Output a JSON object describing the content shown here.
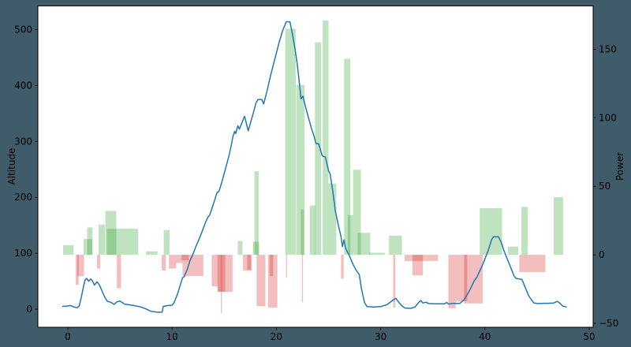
{
  "figure": {
    "background_color": "#405b69",
    "plot_background_color": "#ffffff",
    "spine_color": "#000000",
    "tick_color": "#000000",
    "tick_label_color": "#000000",
    "tick_font_size": 12
  },
  "chart_data": {
    "type": "line+bar",
    "title": "",
    "x_axis": {
      "range": [
        -2.874,
        50.38
      ],
      "ticks": [
        0,
        10,
        20,
        30,
        40,
        50
      ],
      "tick_labels": [
        "0",
        "10",
        "20",
        "30",
        "40",
        "50"
      ]
    },
    "left_y_axis": {
      "label": "Altitude",
      "range": [
        -32.4,
        542.3
      ],
      "ticks": [
        0,
        100,
        200,
        300,
        400,
        500
      ],
      "tick_labels": [
        "0",
        "100",
        "200",
        "300",
        "400",
        "500"
      ]
    },
    "right_y_axis": {
      "label": "Power",
      "range": [
        -52.9,
        181.6
      ],
      "ticks": [
        -50,
        0,
        50,
        100,
        150
      ],
      "tick_labels": [
        "−50",
        "0",
        "50",
        "100",
        "150"
      ]
    },
    "altitude_line": {
      "name": "Altitude",
      "color": "#1f77b4",
      "stroke_width": 1.5,
      "points": [
        [
          -0.5,
          5
        ],
        [
          -0.1,
          5.5
        ],
        [
          0.25,
          6.5
        ],
        [
          0.6,
          4
        ],
        [
          0.9,
          2.5
        ],
        [
          1.1,
          6
        ],
        [
          1.3,
          22
        ],
        [
          1.5,
          40
        ],
        [
          1.65,
          52
        ],
        [
          1.8,
          55
        ],
        [
          2.0,
          50
        ],
        [
          2.2,
          54
        ],
        [
          2.35,
          51
        ],
        [
          2.55,
          43
        ],
        [
          2.8,
          49
        ],
        [
          3.0,
          44
        ],
        [
          3.2,
          36
        ],
        [
          3.55,
          21
        ],
        [
          3.8,
          14
        ],
        [
          4.1,
          12.5
        ],
        [
          4.45,
          8.5
        ],
        [
          4.7,
          13
        ],
        [
          5.0,
          14.5
        ],
        [
          5.45,
          9
        ],
        [
          6.2,
          7
        ],
        [
          7.0,
          4
        ],
        [
          7.5,
          0.5
        ],
        [
          8.0,
          -4
        ],
        [
          8.6,
          -5.5
        ],
        [
          9.05,
          -5.5
        ],
        [
          9.15,
          5
        ],
        [
          9.6,
          6.5
        ],
        [
          10.0,
          7
        ],
        [
          10.2,
          12
        ],
        [
          10.5,
          26
        ],
        [
          10.8,
          44
        ],
        [
          11.0,
          56
        ],
        [
          11.15,
          58
        ],
        [
          11.45,
          71
        ],
        [
          11.7,
          86
        ],
        [
          12.0,
          98
        ],
        [
          12.3,
          113
        ],
        [
          12.6,
          126
        ],
        [
          12.9,
          140
        ],
        [
          13.2,
          155
        ],
        [
          13.45,
          165
        ],
        [
          13.6,
          168
        ],
        [
          13.85,
          182
        ],
        [
          14.1,
          196
        ],
        [
          14.3,
          208
        ],
        [
          14.5,
          211
        ],
        [
          14.75,
          226
        ],
        [
          15.0,
          243
        ],
        [
          15.25,
          260
        ],
        [
          15.5,
          278
        ],
        [
          15.7,
          295
        ],
        [
          15.85,
          310
        ],
        [
          16.0,
          318
        ],
        [
          16.1,
          314
        ],
        [
          16.3,
          328
        ],
        [
          16.45,
          322
        ],
        [
          16.95,
          345
        ],
        [
          17.3,
          319
        ],
        [
          17.7,
          345
        ],
        [
          18.05,
          369
        ],
        [
          18.25,
          375
        ],
        [
          18.6,
          375
        ],
        [
          18.78,
          367
        ],
        [
          19.1,
          390
        ],
        [
          19.45,
          418
        ],
        [
          19.85,
          447
        ],
        [
          20.25,
          476
        ],
        [
          20.6,
          498
        ],
        [
          20.95,
          514
        ],
        [
          21.3,
          514
        ],
        [
          21.5,
          496
        ],
        [
          21.75,
          470
        ],
        [
          22.0,
          439
        ],
        [
          22.15,
          414
        ],
        [
          22.37,
          376
        ],
        [
          22.55,
          381
        ],
        [
          22.7,
          369
        ],
        [
          23.0,
          348
        ],
        [
          23.35,
          324
        ],
        [
          23.6,
          310
        ],
        [
          23.8,
          296
        ],
        [
          24.05,
          296
        ],
        [
          24.4,
          274
        ],
        [
          24.7,
          272
        ],
        [
          25.0,
          248
        ],
        [
          25.15,
          242
        ],
        [
          25.4,
          212
        ],
        [
          25.65,
          176
        ],
        [
          25.95,
          150
        ],
        [
          26.2,
          130
        ],
        [
          26.33,
          112
        ],
        [
          26.48,
          124
        ],
        [
          26.65,
          108
        ],
        [
          27.0,
          96
        ],
        [
          27.35,
          80
        ],
        [
          27.7,
          68
        ],
        [
          27.95,
          62
        ],
        [
          28.15,
          38
        ],
        [
          28.45,
          12
        ],
        [
          28.7,
          4.5
        ],
        [
          29.3,
          4
        ],
        [
          30.0,
          4.5
        ],
        [
          30.6,
          8
        ],
        [
          31.1,
          15
        ],
        [
          31.45,
          19.5
        ],
        [
          31.75,
          12
        ],
        [
          32.1,
          5
        ],
        [
          32.35,
          2
        ],
        [
          32.9,
          1.5
        ],
        [
          33.3,
          4
        ],
        [
          33.65,
          12
        ],
        [
          33.85,
          15.5
        ],
        [
          34.05,
          11
        ],
        [
          34.35,
          12.5
        ],
        [
          34.6,
          10
        ],
        [
          35.3,
          9.5
        ],
        [
          36.1,
          9.5
        ],
        [
          36.35,
          12
        ],
        [
          36.5,
          9
        ],
        [
          36.9,
          10.3
        ],
        [
          37.6,
          10.3
        ],
        [
          38.0,
          17
        ],
        [
          38.3,
          26
        ],
        [
          38.55,
          34
        ],
        [
          38.95,
          50
        ],
        [
          39.25,
          58
        ],
        [
          39.5,
          68.5
        ],
        [
          39.8,
          80
        ],
        [
          40.05,
          92
        ],
        [
          40.3,
          104
        ],
        [
          40.5,
          116
        ],
        [
          40.65,
          125
        ],
        [
          40.85,
          129.5
        ],
        [
          41.3,
          129.5
        ],
        [
          41.55,
          120
        ],
        [
          41.8,
          106
        ],
        [
          42.05,
          94
        ],
        [
          42.3,
          82.5
        ],
        [
          42.55,
          71
        ],
        [
          42.8,
          59
        ],
        [
          43.0,
          55
        ],
        [
          43.55,
          53
        ],
        [
          43.75,
          44
        ],
        [
          43.95,
          35
        ],
        [
          44.2,
          24
        ],
        [
          44.45,
          17
        ],
        [
          44.7,
          11
        ],
        [
          45.1,
          10
        ],
        [
          45.6,
          10.5
        ],
        [
          46.1,
          10.5
        ],
        [
          46.6,
          11
        ],
        [
          46.95,
          14
        ],
        [
          47.2,
          10.5
        ],
        [
          47.45,
          5.5
        ],
        [
          47.8,
          4
        ]
      ]
    },
    "power_bars": {
      "name": "Power",
      "positive_color": "rgba(44,160,44,0.30)",
      "negative_color": "rgba(214,39,40,0.30)",
      "bars": [
        [
          -0.45,
          0.55,
          7
        ],
        [
          1.5,
          2.35,
          11.5
        ],
        [
          1.85,
          2.35,
          20
        ],
        [
          2.95,
          3.55,
          22
        ],
        [
          3.6,
          4.65,
          32
        ],
        [
          3.75,
          6.75,
          19
        ],
        [
          7.5,
          8.6,
          2.5
        ],
        [
          9.2,
          9.75,
          18
        ],
        [
          16.3,
          16.75,
          10
        ],
        [
          17.75,
          18.35,
          9.5
        ],
        [
          17.9,
          18.3,
          61
        ],
        [
          20.85,
          21.85,
          165
        ],
        [
          21.9,
          22.7,
          124
        ],
        [
          22.35,
          22.65,
          33
        ],
        [
          23.2,
          23.75,
          36
        ],
        [
          23.7,
          24.3,
          155
        ],
        [
          24.45,
          25.0,
          171
        ],
        [
          25.0,
          25.75,
          52
        ],
        [
          26.5,
          27.1,
          143
        ],
        [
          26.85,
          27.35,
          29
        ],
        [
          27.35,
          28.1,
          62
        ],
        [
          27.8,
          29.0,
          16
        ],
        [
          28.9,
          30.4,
          1.5
        ],
        [
          30.8,
          32.05,
          14
        ],
        [
          39.5,
          41.65,
          34
        ],
        [
          42.2,
          43.2,
          6
        ],
        [
          43.5,
          44.1,
          35
        ],
        [
          46.6,
          47.5,
          42
        ],
        [
          0.75,
          1.05,
          -22
        ],
        [
          0.9,
          1.55,
          -15.5
        ],
        [
          2.8,
          3.1,
          -10
        ],
        [
          4.7,
          5.1,
          -24.5
        ],
        [
          9.0,
          9.4,
          -11.5
        ],
        [
          9.7,
          10.4,
          -10
        ],
        [
          10.4,
          11.0,
          -6
        ],
        [
          10.9,
          11.6,
          -4
        ],
        [
          11.0,
          13.0,
          -15.5
        ],
        [
          13.8,
          14.4,
          -23
        ],
        [
          14.35,
          15.1,
          -27
        ],
        [
          14.4,
          15.8,
          -27
        ],
        [
          14.68,
          14.78,
          -42.5
        ],
        [
          16.8,
          17.6,
          -11.5
        ],
        [
          17.2,
          17.6,
          -11
        ],
        [
          18.1,
          18.95,
          -37.5
        ],
        [
          19.2,
          20.1,
          -38.5
        ],
        [
          19.35,
          19.7,
          -15.5
        ],
        [
          20.93,
          21.03,
          -16.5
        ],
        [
          22.45,
          22.55,
          -34.7
        ],
        [
          26.2,
          26.45,
          -17.4
        ],
        [
          31.2,
          31.4,
          -38.5
        ],
        [
          32.3,
          35.5,
          -4.5
        ],
        [
          33.05,
          34.05,
          -15
        ],
        [
          36.5,
          37.2,
          -39
        ],
        [
          37.2,
          38.3,
          -34
        ],
        [
          38.0,
          39.8,
          -35.5
        ],
        [
          43.3,
          45.8,
          -12.6
        ]
      ]
    }
  }
}
